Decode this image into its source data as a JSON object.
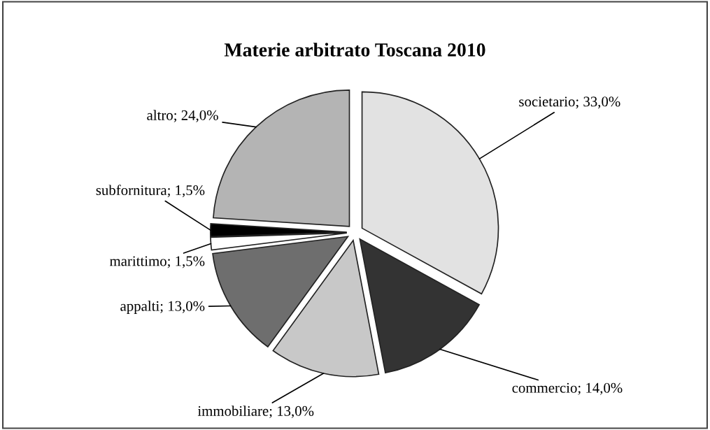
{
  "chart_data": {
    "type": "pie",
    "title": "Materie arbitrato Toscana 2010",
    "categories": [
      "societario",
      "commercio",
      "immobiliare",
      "appalti",
      "marittimo",
      "subfornitura",
      "altro"
    ],
    "values": [
      33,
      14,
      13,
      13,
      1.5,
      1.5,
      24
    ],
    "value_labels": [
      "33,0%",
      "14,0%",
      "13,0%",
      "13,0%",
      "1,5%",
      "1,5%",
      "24,0%"
    ],
    "colors": [
      "#e2e2e2",
      "#333333",
      "#c8c8c8",
      "#6e6e6e",
      "#ffffff",
      "#000000",
      "#b4b4b4"
    ],
    "legend": false
  }
}
